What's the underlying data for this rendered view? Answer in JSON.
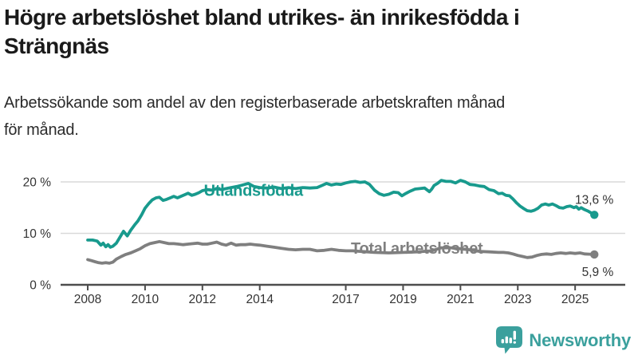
{
  "header": {
    "title_line1": "Högre arbetslöshet bland utrikes- än inrikesfödda i",
    "title_line2": "Strängnäs",
    "subtitle_line1": "Arbetssökande som andel av den registerbaserade arbetskraften månad",
    "subtitle_line2": "för månad."
  },
  "brand": {
    "name": "Newsworthy"
  },
  "colors": {
    "teal_line": "#189a8d",
    "gray_line": "#7f7f7f",
    "logo_teal": "#3ba09d",
    "grid": "#d9d9d9",
    "axis": "#4d4d4d",
    "tick_text": "#333333",
    "value_text": "#333333"
  },
  "chart_data": {
    "type": "line",
    "title": "Högre arbetslöshet bland utrikes- än inrikesfödda i Strängnäs",
    "subtitle": "Arbetssökande som andel av den registerbaserade arbetskraften månad för månad.",
    "xlabel": "",
    "ylabel": "",
    "grid": "horizontal",
    "legend_position": "inline-labels",
    "xlim": [
      2007.9,
      2026.0
    ],
    "ylim": [
      0,
      22
    ],
    "x_ticks": [
      2008,
      2010,
      2012,
      2014,
      2017,
      2019,
      2021,
      2023,
      2025
    ],
    "y_ticks": [
      {
        "value": 0,
        "label": "0 %"
      },
      {
        "value": 10,
        "label": "10 %"
      },
      {
        "value": 20,
        "label": "20 %"
      }
    ],
    "series": [
      {
        "name": "Utlandsfödda",
        "color": "#189a8d",
        "end_label": "13,6 %",
        "end_value": 13.6,
        "end_label_pos": "above",
        "label_anchor": {
          "year": 2012.05,
          "value": 17.25
        },
        "points": [
          [
            2008.0,
            8.7
          ],
          [
            2008.17,
            8.7
          ],
          [
            2008.33,
            8.5
          ],
          [
            2008.46,
            7.7
          ],
          [
            2008.54,
            8.1
          ],
          [
            2008.63,
            7.4
          ],
          [
            2008.71,
            7.8
          ],
          [
            2008.79,
            7.3
          ],
          [
            2008.88,
            7.5
          ],
          [
            2009.0,
            8.1
          ],
          [
            2009.13,
            9.3
          ],
          [
            2009.25,
            10.4
          ],
          [
            2009.38,
            9.5
          ],
          [
            2009.5,
            10.6
          ],
          [
            2009.63,
            11.6
          ],
          [
            2009.75,
            12.4
          ],
          [
            2009.88,
            13.6
          ],
          [
            2010.0,
            14.9
          ],
          [
            2010.13,
            15.8
          ],
          [
            2010.25,
            16.5
          ],
          [
            2010.38,
            16.9
          ],
          [
            2010.5,
            17.0
          ],
          [
            2010.63,
            16.4
          ],
          [
            2010.75,
            16.6
          ],
          [
            2010.88,
            16.9
          ],
          [
            2011.0,
            17.2
          ],
          [
            2011.13,
            16.9
          ],
          [
            2011.25,
            17.2
          ],
          [
            2011.38,
            17.5
          ],
          [
            2011.5,
            17.8
          ],
          [
            2011.63,
            17.4
          ],
          [
            2011.75,
            17.6
          ],
          [
            2011.88,
            17.9
          ],
          [
            2012.0,
            18.3
          ],
          [
            2012.17,
            18.5
          ],
          [
            2012.33,
            18.4
          ],
          [
            2012.5,
            18.7
          ],
          [
            2012.67,
            18.5
          ],
          [
            2012.83,
            18.7
          ],
          [
            2013.0,
            18.9
          ],
          [
            2013.2,
            19.1
          ],
          [
            2013.4,
            19.4
          ],
          [
            2013.6,
            19.7
          ],
          [
            2013.8,
            19.1
          ],
          [
            2014.0,
            18.9
          ],
          [
            2014.25,
            18.8
          ],
          [
            2014.5,
            19.0
          ],
          [
            2014.75,
            18.7
          ],
          [
            2015.0,
            18.9
          ],
          [
            2015.25,
            18.7
          ],
          [
            2015.5,
            18.9
          ],
          [
            2015.75,
            18.8
          ],
          [
            2016.0,
            18.9
          ],
          [
            2016.17,
            19.3
          ],
          [
            2016.33,
            19.7
          ],
          [
            2016.5,
            19.4
          ],
          [
            2016.67,
            19.6
          ],
          [
            2016.83,
            19.5
          ],
          [
            2017.0,
            19.8
          ],
          [
            2017.17,
            20.0
          ],
          [
            2017.33,
            20.1
          ],
          [
            2017.5,
            19.9
          ],
          [
            2017.67,
            20.0
          ],
          [
            2017.83,
            19.5
          ],
          [
            2018.0,
            18.4
          ],
          [
            2018.17,
            17.7
          ],
          [
            2018.33,
            17.4
          ],
          [
            2018.5,
            17.6
          ],
          [
            2018.67,
            18.0
          ],
          [
            2018.83,
            17.9
          ],
          [
            2018.96,
            17.3
          ],
          [
            2019.08,
            17.7
          ],
          [
            2019.25,
            18.2
          ],
          [
            2019.42,
            18.6
          ],
          [
            2019.58,
            18.7
          ],
          [
            2019.75,
            18.8
          ],
          [
            2019.92,
            18.1
          ],
          [
            2020.0,
            18.6
          ],
          [
            2020.08,
            19.3
          ],
          [
            2020.2,
            19.7
          ],
          [
            2020.33,
            20.3
          ],
          [
            2020.5,
            20.1
          ],
          [
            2020.67,
            20.1
          ],
          [
            2020.83,
            19.8
          ],
          [
            2021.0,
            20.3
          ],
          [
            2021.17,
            20.0
          ],
          [
            2021.33,
            19.5
          ],
          [
            2021.5,
            19.4
          ],
          [
            2021.67,
            19.2
          ],
          [
            2021.83,
            19.1
          ],
          [
            2022.0,
            18.5
          ],
          [
            2022.17,
            18.3
          ],
          [
            2022.33,
            17.7
          ],
          [
            2022.46,
            17.8
          ],
          [
            2022.58,
            17.4
          ],
          [
            2022.71,
            17.3
          ],
          [
            2022.83,
            16.7
          ],
          [
            2022.96,
            15.9
          ],
          [
            2023.08,
            15.3
          ],
          [
            2023.21,
            14.8
          ],
          [
            2023.33,
            14.4
          ],
          [
            2023.46,
            14.3
          ],
          [
            2023.58,
            14.5
          ],
          [
            2023.71,
            14.9
          ],
          [
            2023.83,
            15.5
          ],
          [
            2023.96,
            15.7
          ],
          [
            2024.08,
            15.5
          ],
          [
            2024.21,
            15.7
          ],
          [
            2024.33,
            15.4
          ],
          [
            2024.46,
            15.0
          ],
          [
            2024.58,
            14.9
          ],
          [
            2024.71,
            15.2
          ],
          [
            2024.83,
            15.3
          ],
          [
            2024.96,
            15.0
          ],
          [
            2025.04,
            15.2
          ],
          [
            2025.13,
            14.7
          ],
          [
            2025.21,
            15.0
          ],
          [
            2025.33,
            14.6
          ],
          [
            2025.46,
            14.3
          ],
          [
            2025.58,
            13.9
          ],
          [
            2025.67,
            13.6
          ]
        ]
      },
      {
        "name": "Total arbetslöshet",
        "color": "#7f7f7f",
        "end_label": "5,9 %",
        "end_value": 5.9,
        "end_label_pos": "below",
        "label_anchor": {
          "year": 2017.18,
          "value": 6.05
        },
        "points": [
          [
            2008.0,
            4.9
          ],
          [
            2008.13,
            4.7
          ],
          [
            2008.25,
            4.5
          ],
          [
            2008.38,
            4.3
          ],
          [
            2008.5,
            4.2
          ],
          [
            2008.63,
            4.3
          ],
          [
            2008.75,
            4.2
          ],
          [
            2008.88,
            4.4
          ],
          [
            2009.0,
            5.0
          ],
          [
            2009.17,
            5.5
          ],
          [
            2009.33,
            5.9
          ],
          [
            2009.5,
            6.2
          ],
          [
            2009.67,
            6.6
          ],
          [
            2009.83,
            7.0
          ],
          [
            2010.0,
            7.6
          ],
          [
            2010.17,
            8.0
          ],
          [
            2010.33,
            8.2
          ],
          [
            2010.5,
            8.4
          ],
          [
            2010.67,
            8.2
          ],
          [
            2010.83,
            8.0
          ],
          [
            2011.0,
            8.0
          ],
          [
            2011.17,
            7.9
          ],
          [
            2011.33,
            7.8
          ],
          [
            2011.5,
            7.9
          ],
          [
            2011.67,
            8.0
          ],
          [
            2011.83,
            8.1
          ],
          [
            2012.0,
            7.9
          ],
          [
            2012.17,
            7.9
          ],
          [
            2012.33,
            8.1
          ],
          [
            2012.5,
            8.3
          ],
          [
            2012.67,
            7.9
          ],
          [
            2012.83,
            7.7
          ],
          [
            2013.0,
            8.1
          ],
          [
            2013.17,
            7.7
          ],
          [
            2013.33,
            7.8
          ],
          [
            2013.5,
            7.8
          ],
          [
            2013.67,
            7.9
          ],
          [
            2013.83,
            7.8
          ],
          [
            2014.0,
            7.7
          ],
          [
            2014.25,
            7.5
          ],
          [
            2014.5,
            7.3
          ],
          [
            2014.75,
            7.1
          ],
          [
            2015.0,
            6.9
          ],
          [
            2015.25,
            6.8
          ],
          [
            2015.5,
            6.9
          ],
          [
            2015.75,
            6.9
          ],
          [
            2016.0,
            6.6
          ],
          [
            2016.25,
            6.7
          ],
          [
            2016.5,
            6.9
          ],
          [
            2016.75,
            6.7
          ],
          [
            2017.0,
            6.6
          ],
          [
            2017.25,
            6.6
          ],
          [
            2017.5,
            6.5
          ],
          [
            2017.75,
            6.4
          ],
          [
            2018.0,
            6.3
          ],
          [
            2018.5,
            6.2
          ],
          [
            2019.0,
            6.3
          ],
          [
            2019.5,
            6.4
          ],
          [
            2020.0,
            6.6
          ],
          [
            2020.33,
            7.2
          ],
          [
            2020.67,
            7.2
          ],
          [
            2021.0,
            7.0
          ],
          [
            2021.33,
            6.8
          ],
          [
            2021.67,
            6.5
          ],
          [
            2022.0,
            6.4
          ],
          [
            2022.33,
            6.3
          ],
          [
            2022.5,
            6.3
          ],
          [
            2022.67,
            6.2
          ],
          [
            2022.83,
            6.0
          ],
          [
            2023.0,
            5.7
          ],
          [
            2023.17,
            5.5
          ],
          [
            2023.33,
            5.3
          ],
          [
            2023.5,
            5.4
          ],
          [
            2023.67,
            5.7
          ],
          [
            2023.83,
            5.9
          ],
          [
            2024.0,
            6.0
          ],
          [
            2024.17,
            5.9
          ],
          [
            2024.33,
            6.1
          ],
          [
            2024.5,
            6.2
          ],
          [
            2024.67,
            6.1
          ],
          [
            2024.83,
            6.2
          ],
          [
            2025.0,
            6.1
          ],
          [
            2025.17,
            6.2
          ],
          [
            2025.33,
            6.0
          ],
          [
            2025.5,
            5.95
          ],
          [
            2025.67,
            5.9
          ]
        ]
      }
    ]
  }
}
